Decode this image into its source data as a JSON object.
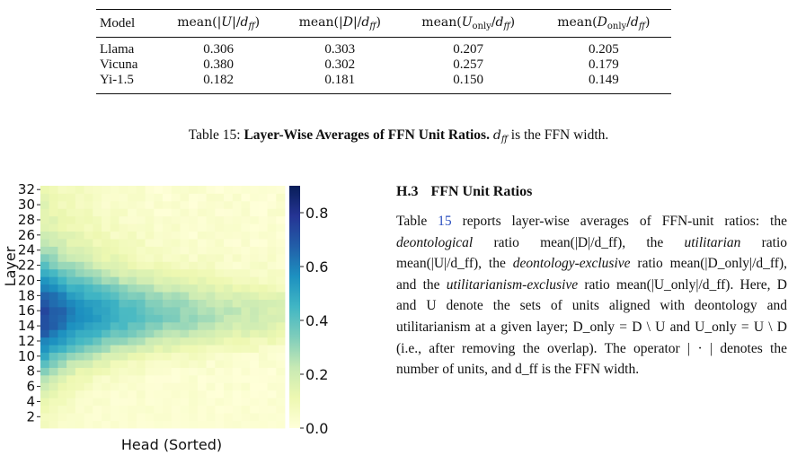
{
  "table": {
    "headers": [
      "Model",
      "mean(|U|/d_ff)",
      "mean(|D|/d_ff)",
      "mean(U_only/d_ff)",
      "mean(D_only/d_ff)"
    ],
    "rows": [
      {
        "model": "Llama",
        "values": [
          "0.306",
          "0.303",
          "0.207",
          "0.205"
        ]
      },
      {
        "model": "Vicuna",
        "values": [
          "0.380",
          "0.302",
          "0.257",
          "0.179"
        ]
      },
      {
        "model": "Yi-1.5",
        "values": [
          "0.182",
          "0.181",
          "0.150",
          "0.149"
        ]
      }
    ]
  },
  "caption": {
    "label": "Table 15:",
    "title": "Layer-Wise Averages of FFN Unit Ratios.",
    "text": "is the FFN width.",
    "symbol": "d_ff"
  },
  "chart_data": {
    "type": "heatmap",
    "xlabel": "Head (Sorted)",
    "ylabel": "Layer",
    "y_ticks": [
      2,
      4,
      6,
      8,
      10,
      12,
      14,
      16,
      18,
      20,
      22,
      24,
      26,
      28,
      30,
      32
    ],
    "colorbar_ticks": [
      "0.0",
      "0.2",
      "0.4",
      "0.6",
      "0.8"
    ],
    "colorbar_range": [
      0.0,
      0.9
    ],
    "colormap": "YlGnBu",
    "rows": 32,
    "columns": 28,
    "pattern": "values decrease with sorted head index; highest around layers 13-18, low in layers 1-8"
  },
  "section": {
    "number": "H.3",
    "title": "FFN Unit Ratios",
    "paragraph": [
      {
        "t": "Table "
      },
      {
        "t": "15",
        "ref": true
      },
      {
        "t": " reports layer-wise averages of FFN-unit ratios: the "
      },
      {
        "t": "deontological",
        "i": true
      },
      {
        "t": " ratio mean(|D|/d_ff), the "
      },
      {
        "t": "utilitarian",
        "i": true
      },
      {
        "t": " ratio mean(|U|/d_ff), the "
      },
      {
        "t": "deontology-exclusive",
        "i": true
      },
      {
        "t": " ratio mean(|D_only|/d_ff), and the "
      },
      {
        "t": "utilitarianism-exclusive",
        "i": true
      },
      {
        "t": " ratio mean(|U_only|/d_ff). Here, D and U denote the sets of units aligned with deontology and utilitarianism at a given layer; D_only = D \\ U and U_only = U \\ D (i.e., after removing the overlap). The operator | · | denotes the number of units, and d_ff is the FFN width."
      }
    ]
  }
}
